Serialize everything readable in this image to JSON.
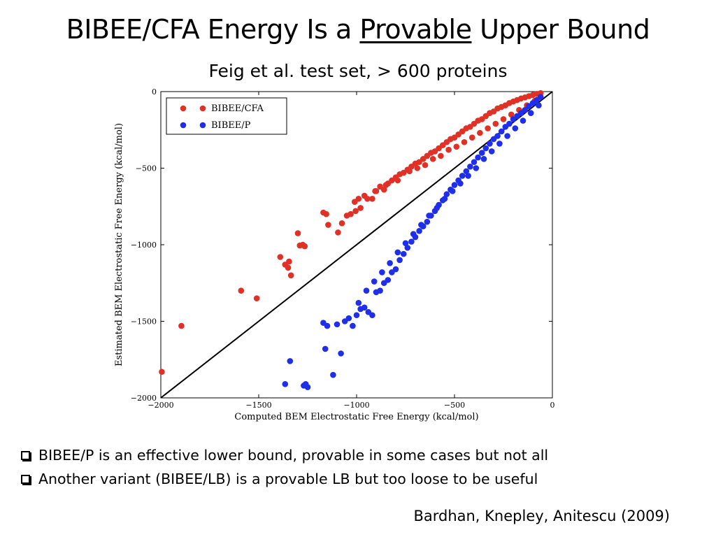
{
  "slide": {
    "title_pre": "BIBEE/CFA Energy Is a ",
    "title_underlined": "Provable",
    "title_post": " Upper Bound",
    "subtitle": "Feig et al. test set, > 600 proteins",
    "bullets": [
      "BIBEE/P is an effective lower bound, provable in some cases but not all",
      "Another variant (BIBEE/LB) is a provable LB but too loose to be useful"
    ],
    "citation": "Bardhan, Knepley, Anitescu (2009)"
  },
  "chart_data": {
    "type": "scatter",
    "title": "",
    "xlabel": "Computed BEM Electrostatic Free Energy (kcal/mol)",
    "ylabel": "Estimated BEM Electrostatic Free Energy (kcal/mol)",
    "xlim": [
      -2000,
      0
    ],
    "ylim": [
      -2000,
      0
    ],
    "x_ticks": [
      -2000,
      -1500,
      -1000,
      -500,
      0
    ],
    "y_ticks": [
      0,
      -500,
      -1000,
      -1500,
      -2000
    ],
    "x_tick_labels": [
      "−2000",
      "−1500",
      "−1000",
      "−500",
      "0"
    ],
    "y_tick_labels": [
      "0",
      "−500",
      "−1000",
      "−1500",
      "−2000"
    ],
    "grid": false,
    "legend_position": "top-left",
    "reference_line": {
      "from": [
        -2000,
        -2000
      ],
      "to": [
        0,
        0
      ],
      "color": "#000000"
    },
    "series": [
      {
        "name": "BIBEE/CFA",
        "color": "#e03127",
        "x": [
          -1995,
          -1895,
          -1590,
          -1510,
          -1390,
          -1365,
          -1350,
          -1345,
          -1335,
          -1300,
          -1290,
          -1275,
          -1265,
          -1170,
          -1155,
          -1145,
          -1095,
          -1075,
          -1050,
          -1030,
          -1010,
          -1005,
          -990,
          -980,
          -960,
          -945,
          -920,
          -905,
          -880,
          -860,
          -840,
          -820,
          -800,
          -780,
          -760,
          -740,
          -720,
          -700,
          -680,
          -660,
          -640,
          -620,
          -600,
          -580,
          -560,
          -540,
          -520,
          -500,
          -480,
          -460,
          -440,
          -420,
          -400,
          -380,
          -360,
          -340,
          -320,
          -300,
          -280,
          -260,
          -240,
          -220,
          -200,
          -180,
          -160,
          -140,
          -120,
          -100,
          -80,
          -60,
          -900,
          -850,
          -790,
          -730,
          -690,
          -650,
          -610,
          -570,
          -530,
          -490,
          -450,
          -410,
          -370,
          -330,
          -290,
          -250,
          -210,
          -170,
          -130,
          -90
        ],
        "y": [
          -1830,
          -1530,
          -1300,
          -1350,
          -1080,
          -1130,
          -1150,
          -1110,
          -1200,
          -925,
          -1005,
          -1000,
          -1010,
          -790,
          -800,
          -870,
          -920,
          -860,
          -810,
          -800,
          -720,
          -780,
          -700,
          -760,
          -680,
          -700,
          -700,
          -650,
          -620,
          -640,
          -600,
          -580,
          -560,
          -540,
          -530,
          -510,
          -490,
          -470,
          -460,
          -440,
          -420,
          -400,
          -390,
          -370,
          -350,
          -330,
          -310,
          -300,
          -280,
          -260,
          -240,
          -230,
          -210,
          -190,
          -180,
          -160,
          -140,
          -130,
          -110,
          -100,
          -90,
          -75,
          -65,
          -55,
          -45,
          -38,
          -30,
          -22,
          -15,
          -10,
          -650,
          -610,
          -580,
          -520,
          -500,
          -480,
          -440,
          -420,
          -380,
          -360,
          -330,
          -300,
          -270,
          -240,
          -210,
          -180,
          -150,
          -120,
          -90,
          -60
        ]
      },
      {
        "name": "BIBEE/P",
        "color": "#1f2ee8",
        "x": [
          -1365,
          -1340,
          -1270,
          -1260,
          -1250,
          -1170,
          -1160,
          -1150,
          -1120,
          -1100,
          -1080,
          -1060,
          -1040,
          -1020,
          -1000,
          -980,
          -960,
          -940,
          -920,
          -900,
          -880,
          -860,
          -840,
          -820,
          -800,
          -780,
          -760,
          -740,
          -720,
          -700,
          -680,
          -660,
          -640,
          -620,
          -600,
          -580,
          -560,
          -540,
          -520,
          -500,
          -480,
          -460,
          -440,
          -420,
          -400,
          -380,
          -360,
          -340,
          -320,
          -300,
          -280,
          -260,
          -240,
          -220,
          -200,
          -180,
          -160,
          -140,
          -120,
          -100,
          -80,
          -60,
          -990,
          -950,
          -910,
          -870,
          -830,
          -790,
          -750,
          -710,
          -670,
          -630,
          -590,
          -550,
          -510,
          -470,
          -430,
          -390,
          -350,
          -310,
          -270,
          -230,
          -190,
          -150,
          -110,
          -70
        ],
        "y": [
          -1910,
          -1760,
          -1920,
          -1910,
          -1930,
          -1510,
          -1680,
          -1530,
          -1850,
          -1520,
          -1710,
          -1500,
          -1480,
          -1530,
          -1460,
          -1420,
          -1410,
          -1440,
          -1460,
          -1310,
          -1300,
          -1250,
          -1230,
          -1180,
          -1160,
          -1100,
          -1060,
          -1020,
          -980,
          -950,
          -910,
          -880,
          -850,
          -810,
          -780,
          -740,
          -710,
          -670,
          -640,
          -610,
          -580,
          -550,
          -520,
          -490,
          -460,
          -430,
          -400,
          -370,
          -340,
          -310,
          -290,
          -260,
          -230,
          -210,
          -180,
          -160,
          -140,
          -120,
          -95,
          -75,
          -55,
          -35,
          -1380,
          -1300,
          -1240,
          -1180,
          -1120,
          -1050,
          -990,
          -930,
          -870,
          -810,
          -760,
          -700,
          -650,
          -600,
          -550,
          -500,
          -440,
          -390,
          -340,
          -290,
          -240,
          -190,
          -140,
          -90
        ]
      }
    ]
  }
}
